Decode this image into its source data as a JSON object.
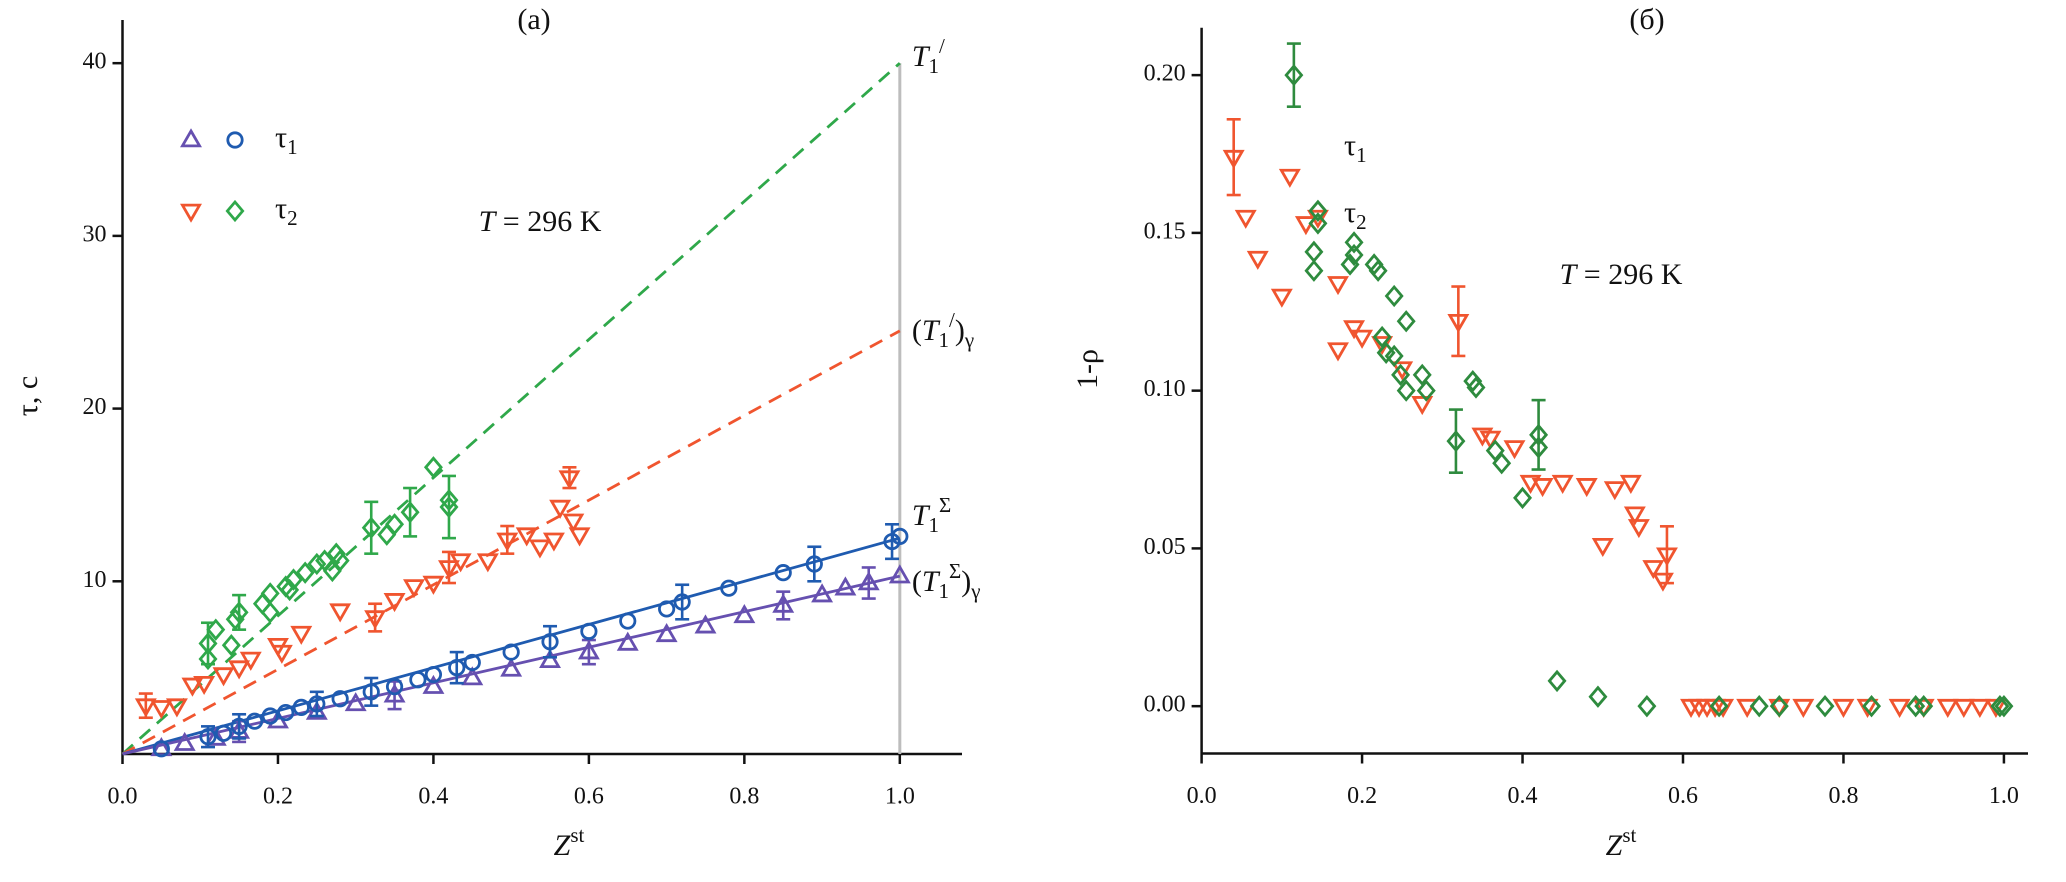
{
  "chart_data": [
    {
      "type": "scatter",
      "title": "(a)",
      "xlabel": {
        "parts": [
          "Z",
          "st"
        ],
        "styles": [
          "i",
          "sup"
        ]
      },
      "ylabel": {
        "parts": [
          "τ, c"
        ],
        "styles": [
          "n"
        ]
      },
      "xlim": [
        0,
        1.08
      ],
      "ylim": [
        0,
        42.5
      ],
      "xticks": [
        {
          "value": 0,
          "label": "0.0"
        },
        {
          "value": 0.2,
          "label": "0.2"
        },
        {
          "value": 0.4,
          "label": "0.4"
        },
        {
          "value": 0.6,
          "label": "0.6"
        },
        {
          "value": 0.8,
          "label": "0.8"
        },
        {
          "value": 1,
          "label": "1.0"
        }
      ],
      "yticks": [
        10,
        20,
        30,
        40
      ],
      "series": [
        {
          "marker": "triangle-up",
          "color": "#6650b0",
          "legend_group": 0,
          "x": [
            0.05,
            0.08,
            0.12,
            0.15,
            0.2,
            0.25,
            0.3,
            0.35,
            0.4,
            0.45,
            0.5,
            0.55,
            0.6,
            0.65,
            0.7,
            0.75,
            0.8,
            0.85,
            0.9,
            0.93,
            0.96,
            1.0
          ],
          "values": [
            0.3,
            0.6,
            0.9,
            1.3,
            1.9,
            2.4,
            2.9,
            3.4,
            3.9,
            4.4,
            4.9,
            5.4,
            5.9,
            6.4,
            6.9,
            7.4,
            8.0,
            8.6,
            9.2,
            9.6,
            9.9,
            10.3
          ],
          "errors": [
            null,
            null,
            null,
            0.6,
            null,
            null,
            null,
            0.8,
            null,
            null,
            null,
            null,
            0.7,
            null,
            null,
            null,
            null,
            0.8,
            null,
            null,
            0.9,
            null
          ]
        },
        {
          "marker": "circle",
          "color": "#1f5bb0",
          "legend_group": 0,
          "x": [
            0.05,
            0.11,
            0.13,
            0.15,
            0.17,
            0.19,
            0.21,
            0.23,
            0.25,
            0.28,
            0.32,
            0.35,
            0.38,
            0.4,
            0.43,
            0.45,
            0.5,
            0.55,
            0.6,
            0.65,
            0.7,
            0.72,
            0.78,
            0.85,
            0.89,
            0.99,
            1.0
          ],
          "values": [
            0.3,
            1.0,
            1.2,
            1.6,
            1.9,
            2.2,
            2.4,
            2.7,
            2.9,
            3.2,
            3.6,
            3.9,
            4.3,
            4.6,
            5.0,
            5.3,
            5.9,
            6.5,
            7.1,
            7.7,
            8.4,
            8.8,
            9.6,
            10.5,
            11.0,
            12.3,
            12.6
          ],
          "errors": [
            null,
            0.6,
            null,
            0.7,
            null,
            null,
            null,
            null,
            0.7,
            null,
            0.8,
            null,
            null,
            null,
            0.9,
            null,
            null,
            0.9,
            null,
            null,
            null,
            1.0,
            null,
            null,
            1.0,
            1.0,
            null
          ]
        },
        {
          "marker": "triangle-down",
          "color": "#f0552f",
          "legend_group": 1,
          "x": [
            0.03,
            0.05,
            0.07,
            0.09,
            0.105,
            0.13,
            0.15,
            0.165,
            0.2,
            0.205,
            0.23,
            0.28,
            0.325,
            0.35,
            0.375,
            0.4,
            0.42,
            0.435,
            0.47,
            0.495,
            0.52,
            0.537,
            0.555,
            0.563,
            0.575,
            0.58,
            0.588
          ],
          "values": [
            2.8,
            2.7,
            2.8,
            4.0,
            4.1,
            4.6,
            5.0,
            5.5,
            6.3,
            5.9,
            7.0,
            8.3,
            7.9,
            8.9,
            9.7,
            9.9,
            10.8,
            11.2,
            11.2,
            12.4,
            12.7,
            12.0,
            12.4,
            14.3,
            16.0,
            13.5,
            12.7
          ],
          "errors": [
            0.7,
            null,
            null,
            null,
            null,
            null,
            null,
            null,
            null,
            null,
            null,
            null,
            0.8,
            null,
            null,
            null,
            0.9,
            null,
            null,
            0.8,
            null,
            null,
            null,
            null,
            0.6,
            null,
            null
          ]
        },
        {
          "marker": "diamond",
          "color": "#2fa84a",
          "legend_group": 1,
          "x": [
            0.11,
            0.11,
            0.12,
            0.14,
            0.145,
            0.15,
            0.18,
            0.19,
            0.19,
            0.21,
            0.215,
            0.22,
            0.235,
            0.25,
            0.26,
            0.27,
            0.275,
            0.28,
            0.32,
            0.34,
            0.35,
            0.37,
            0.4,
            0.42,
            0.42
          ],
          "values": [
            5.5,
            6.4,
            7.2,
            6.3,
            7.8,
            8.2,
            8.7,
            8.2,
            9.3,
            9.7,
            9.5,
            10.1,
            10.5,
            11.0,
            11.2,
            10.6,
            11.6,
            11.2,
            13.1,
            12.7,
            13.3,
            14.0,
            16.6,
            14.3,
            14.7
          ],
          "errors": [
            null,
            1.2,
            null,
            null,
            null,
            1.0,
            null,
            null,
            null,
            null,
            null,
            null,
            null,
            null,
            null,
            null,
            null,
            null,
            1.5,
            null,
            null,
            1.4,
            null,
            1.8,
            null
          ]
        }
      ],
      "lines": [
        {
          "name": {
            "parts": [
              "T",
              "1",
              "/"
            ],
            "styles": [
              "i",
              "sub",
              "sup"
            ]
          },
          "color": "#2fa84a",
          "dashed": true,
          "x": [
            0,
            1.0
          ],
          "values": [
            0,
            40
          ]
        },
        {
          "name": {
            "parts": [
              "(",
              "T",
              "1",
              "/",
              ")",
              "γ"
            ],
            "styles": [
              "n",
              "i",
              "sub",
              "sup",
              "n",
              "sub"
            ]
          },
          "color": "#f0552f",
          "dashed": true,
          "x": [
            0,
            1.0
          ],
          "values": [
            0,
            24.5
          ]
        },
        {
          "name": {
            "parts": [
              "T",
              "1",
              "Σ"
            ],
            "styles": [
              "i",
              "sub",
              "sup"
            ]
          },
          "color": "#1f5bb0",
          "dashed": false,
          "x": [
            0,
            1.0
          ],
          "values": [
            0,
            12.5
          ]
        },
        {
          "name": {
            "parts": [
              "(",
              "T",
              "1",
              "Σ",
              ")",
              "γ"
            ],
            "styles": [
              "n",
              "i",
              "sub",
              "sup",
              "n",
              "sub"
            ]
          },
          "color": "#6650b0",
          "dashed": false,
          "x": [
            0,
            1.0
          ],
          "values": [
            0,
            10.3
          ]
        }
      ],
      "vline": {
        "x": 1.0,
        "color": "#bdbdbd"
      },
      "legend": [
        {
          "label": {
            "parts": [
              "τ",
              "1"
            ],
            "styles": [
              "n",
              "sub"
            ]
          }
        },
        {
          "label": {
            "parts": [
              "τ",
              "2"
            ],
            "styles": [
              "n",
              "sub"
            ]
          }
        }
      ],
      "annotation": {
        "parts": [
          "T",
          " = 296 K"
        ],
        "styles": [
          "i",
          "n"
        ]
      }
    },
    {
      "type": "scatter",
      "title": "(б)",
      "xlabel": {
        "parts": [
          "Z",
          "st"
        ],
        "styles": [
          "i",
          "sup"
        ]
      },
      "ylabel": {
        "parts": [
          "1-ρ"
        ],
        "styles": [
          "n"
        ]
      },
      "xlim": [
        0,
        1.03
      ],
      "ylim": [
        -0.015,
        0.215
      ],
      "xticks": [
        {
          "value": 0,
          "label": "0.0"
        },
        {
          "value": 0.2,
          "label": "0.2"
        },
        {
          "value": 0.4,
          "label": "0.4"
        },
        {
          "value": 0.6,
          "label": "0.6"
        },
        {
          "value": 0.8,
          "label": "0.8"
        },
        {
          "value": 1,
          "label": "1.0"
        }
      ],
      "yticks": [
        {
          "value": 0,
          "label": "0.00"
        },
        {
          "value": 0.05,
          "label": "0.05"
        },
        {
          "value": 0.1,
          "label": "0.10"
        },
        {
          "value": 0.15,
          "label": "0.15"
        },
        {
          "value": 0.2,
          "label": "0.20"
        }
      ],
      "series": [
        {
          "marker": "triangle-down",
          "color": "#f0552f",
          "x": [
            0.04,
            0.055,
            0.07,
            0.1,
            0.11,
            0.13,
            0.145,
            0.17,
            0.17,
            0.19,
            0.2,
            0.225,
            0.25,
            0.275,
            0.32,
            0.35,
            0.36,
            0.39,
            0.41,
            0.425,
            0.45,
            0.48,
            0.5,
            0.515,
            0.535,
            0.54,
            0.545,
            0.563,
            0.575,
            0.58,
            0.61,
            0.62,
            0.63,
            0.64,
            0.65,
            0.68,
            0.72,
            0.75,
            0.8,
            0.83,
            0.87,
            0.9,
            0.93,
            0.95,
            0.97,
            0.99
          ],
          "values": [
            0.174,
            0.155,
            0.142,
            0.13,
            0.168,
            0.153,
            0.155,
            0.134,
            0.113,
            0.12,
            0.117,
            0.115,
            0.107,
            0.096,
            0.122,
            0.086,
            0.085,
            0.082,
            0.071,
            0.07,
            0.071,
            0.07,
            0.051,
            0.069,
            0.071,
            0.061,
            0.057,
            0.044,
            0.04,
            0.048,
            0,
            0,
            0,
            0,
            0,
            0,
            0,
            0,
            0,
            0,
            0,
            0,
            0,
            0,
            0,
            0
          ],
          "errors": [
            0.012,
            null,
            null,
            null,
            null,
            null,
            null,
            null,
            null,
            null,
            null,
            null,
            null,
            null,
            0.011,
            null,
            null,
            null,
            null,
            null,
            null,
            null,
            null,
            null,
            null,
            null,
            null,
            null,
            null,
            0.009,
            null,
            null,
            null,
            null,
            null,
            null,
            null,
            null,
            null,
            null,
            null,
            null,
            null,
            null,
            null,
            null
          ]
        },
        {
          "marker": "diamond",
          "color": "#2e8b3e",
          "x": [
            0.115,
            0.14,
            0.14,
            0.145,
            0.145,
            0.185,
            0.19,
            0.19,
            0.215,
            0.22,
            0.225,
            0.23,
            0.24,
            0.24,
            0.248,
            0.255,
            0.255,
            0.275,
            0.28,
            0.317,
            0.338,
            0.342,
            0.366,
            0.374,
            0.4,
            0.42,
            0.42,
            0.443,
            0.494,
            0.555,
            0.645,
            0.695,
            0.72,
            0.777,
            0.835,
            0.89,
            0.9,
            0.995,
            1.0
          ],
          "values": [
            0.2,
            0.144,
            0.138,
            0.157,
            0.153,
            0.14,
            0.147,
            0.143,
            0.14,
            0.138,
            0.117,
            0.112,
            0.13,
            0.111,
            0.105,
            0.122,
            0.1,
            0.105,
            0.1,
            0.084,
            0.103,
            0.101,
            0.081,
            0.077,
            0.066,
            0.086,
            0.082,
            0.008,
            0.003,
            0,
            0,
            0,
            0,
            0,
            0,
            0,
            0,
            0,
            0
          ],
          "errors": [
            0.01,
            null,
            null,
            null,
            null,
            null,
            null,
            null,
            null,
            null,
            null,
            null,
            null,
            null,
            null,
            null,
            null,
            null,
            null,
            0.01,
            null,
            null,
            null,
            null,
            null,
            0.011,
            null,
            null,
            null,
            null,
            null,
            null,
            null,
            null,
            null,
            null,
            null,
            null,
            null
          ]
        }
      ],
      "labels": [
        {
          "parts": [
            "τ",
            "1"
          ],
          "styles": [
            "n",
            "sub"
          ]
        },
        {
          "parts": [
            "τ",
            "2"
          ],
          "styles": [
            "n",
            "sub"
          ]
        }
      ],
      "annotation": {
        "parts": [
          "T",
          " = 296 K"
        ],
        "styles": [
          "i",
          "n"
        ]
      }
    }
  ]
}
